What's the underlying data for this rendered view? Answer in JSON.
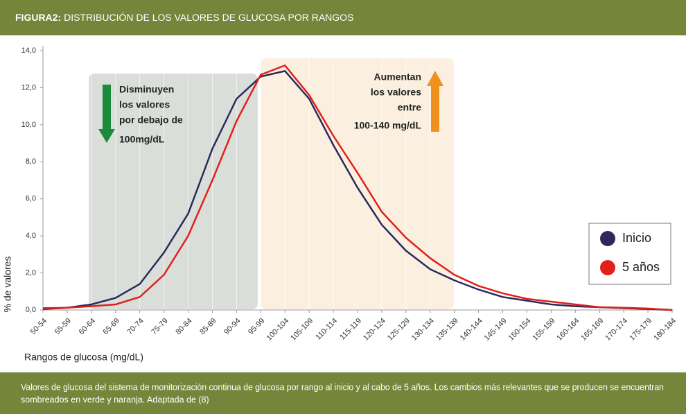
{
  "chart_data": {
    "type": "line",
    "figure_label": "FIGURA2:",
    "title": "DISTRIBUCIÓN DE LOS VALORES DE GLUCOSA POR RANGOS",
    "x_label": "Rangos de glucosa (mg/dL)",
    "y_label": "% de valores",
    "categories": [
      "50-54",
      "55-59",
      "60-64",
      "65-69",
      "70-74",
      "75-79",
      "80-84",
      "85-89",
      "90-94",
      "95-99",
      "100-104",
      "105-109",
      "110-114",
      "115-119",
      "120-124",
      "125-129",
      "130-134",
      "135-139",
      "140-144",
      "145-149",
      "150-154",
      "155-159",
      "160-164",
      "165-169",
      "170-174",
      "175-179",
      "180-184"
    ],
    "series": [
      {
        "name": "Inicio",
        "color": "#2b2a5e",
        "values": [
          0.05,
          0.12,
          0.3,
          0.65,
          1.4,
          3.1,
          5.2,
          8.7,
          11.4,
          12.6,
          12.9,
          11.4,
          8.9,
          6.6,
          4.6,
          3.2,
          2.2,
          1.6,
          1.1,
          0.7,
          0.5,
          0.3,
          0.2,
          0.15,
          0.1,
          0.05,
          0.0
        ]
      },
      {
        "name": "5 años",
        "color": "#e0201c",
        "values": [
          0.1,
          0.12,
          0.2,
          0.3,
          0.7,
          1.9,
          4.0,
          7.0,
          10.2,
          12.7,
          13.2,
          11.6,
          9.4,
          7.4,
          5.3,
          3.9,
          2.8,
          1.9,
          1.3,
          0.9,
          0.6,
          0.45,
          0.3,
          0.15,
          0.12,
          0.08,
          0.0
        ]
      }
    ],
    "ylim": [
      0,
      14
    ],
    "yticks": [
      {
        "value": 0,
        "label": "0,0"
      },
      {
        "value": 2,
        "label": "2,0"
      },
      {
        "value": 4,
        "label": "4,0"
      },
      {
        "value": 6,
        "label": "6,0"
      },
      {
        "value": 8,
        "label": "8,0"
      },
      {
        "value": 10,
        "label": "10,0"
      },
      {
        "value": 12,
        "label": "12,0"
      },
      {
        "value": 14,
        "label": "14,0"
      }
    ],
    "annotations": {
      "decrease": [
        "Disminuyen",
        "los valores",
        "por debajo de",
        "100mg/dL"
      ],
      "increase": [
        "Aumentan",
        "los valores",
        "entre",
        "100-140 mg/dL"
      ]
    },
    "caption": [
      "Valores de glucosa del sistema de monitorización continua de glucosa por rango al inicio y al cabo de 5 años. Los cambios más relevantes que se producen se encuentran",
      "sombreados en verde y naranja. Adaptada de (8)"
    ]
  }
}
